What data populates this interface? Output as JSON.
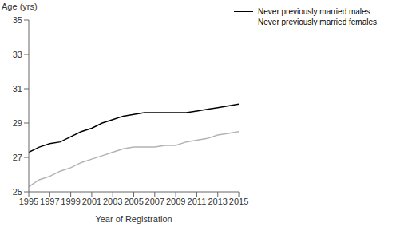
{
  "chart_data": {
    "type": "line",
    "x_label": "Year of Registration",
    "y_label": "Age (yrs)",
    "x": [
      1995,
      1996,
      1997,
      1998,
      1999,
      2000,
      2001,
      2002,
      2003,
      2004,
      2005,
      2006,
      2007,
      2008,
      2009,
      2010,
      2011,
      2012,
      2013,
      2014,
      2015
    ],
    "series": [
      {
        "name": "Never previously married males",
        "color": "#000000",
        "values": [
          27.3,
          27.6,
          27.8,
          27.9,
          28.2,
          28.5,
          28.7,
          29.0,
          29.2,
          29.4,
          29.5,
          29.6,
          29.6,
          29.6,
          29.6,
          29.6,
          29.7,
          29.8,
          29.9,
          30.0,
          30.1
        ]
      },
      {
        "name": "Never previously married females",
        "color": "#b3b3b3",
        "values": [
          25.3,
          25.7,
          25.9,
          26.2,
          26.4,
          26.7,
          26.9,
          27.1,
          27.3,
          27.5,
          27.6,
          27.6,
          27.6,
          27.7,
          27.7,
          27.9,
          28.0,
          28.1,
          28.3,
          28.4,
          28.5
        ]
      }
    ],
    "xlim": [
      1995,
      2015
    ],
    "xticks": [
      1995,
      1997,
      1999,
      2001,
      2003,
      2005,
      2007,
      2009,
      2011,
      2013,
      2015
    ],
    "ylim": [
      25,
      35
    ],
    "yticks": [
      25,
      27,
      29,
      31,
      33,
      35
    ],
    "grid": false,
    "legend": "upper right"
  }
}
